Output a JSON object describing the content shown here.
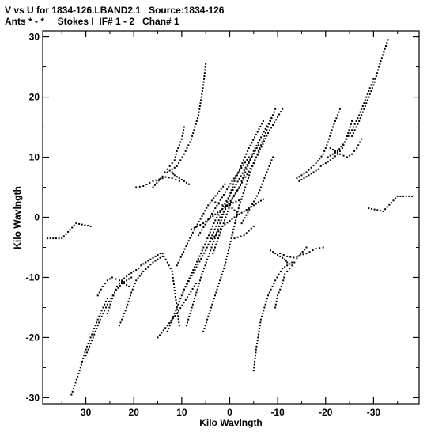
{
  "title": "V vs U for 1834-126.LBAND2.1   Source:1834-126",
  "subtitle": "Ants * - *     Stokes I  IF# 1 - 2   Chan# 1",
  "chart_data": {
    "type": "scatter",
    "xlabel": "Kilo Wavlngth",
    "ylabel": "Kilo Wavlngth",
    "xlim": [
      39,
      -39.5
    ],
    "ylim": [
      -31,
      31
    ],
    "x_reversed": true,
    "xticks": [
      30,
      20,
      10,
      0,
      -10,
      -20,
      -30
    ],
    "xtick_labels": [
      "30",
      "20",
      "10",
      "0",
      "-10",
      "-20",
      "-30"
    ],
    "yticks": [
      30,
      20,
      10,
      0,
      -10,
      -20,
      -30
    ],
    "ytick_labels": [
      "30",
      "20",
      "10",
      "0",
      "-10",
      "-20",
      "-30"
    ],
    "grid": false,
    "marker_color": "#000000",
    "tracks": [
      {
        "u": [
          5.5,
          1.0,
          -2.0,
          -4.5,
          -7.0,
          -9.5
        ],
        "v": [
          -19.0,
          -8.0,
          2.0,
          8.0,
          13.0,
          18.0
        ]
      },
      {
        "u": [
          9.0,
          6.0,
          2.0,
          -1.0,
          -4.0,
          -7.0
        ],
        "v": [
          -18.0,
          -10.0,
          -1.0,
          6.0,
          11.5,
          16.0
        ]
      },
      {
        "u": [
          9.5,
          5.0,
          2.0,
          -2.0,
          -5.0,
          -9.0
        ],
        "v": [
          -12.0,
          -5.5,
          0.0,
          5.0,
          11.0,
          17.0
        ]
      },
      {
        "u": [
          13.0,
          9.5,
          6.0,
          3.0,
          -1.0,
          -6.0
        ],
        "v": [
          -19.0,
          -12.0,
          -6.0,
          -0.5,
          5.0,
          12.0
        ]
      },
      {
        "u": [
          15.0,
          11.0,
          7.0
        ],
        "v": [
          -20.0,
          -16.0,
          -11.0
        ]
      },
      {
        "u": [
          3.5,
          -0.5,
          -5.0,
          -8.0,
          -11.0
        ],
        "v": [
          -6.0,
          3.0,
          9.0,
          14.0,
          18.0
        ]
      },
      {
        "u": [
          6.5,
          3.0,
          -0.5,
          -4.0
        ],
        "v": [
          -3.0,
          1.5,
          6.0,
          10.0
        ]
      },
      {
        "u": [
          11.0,
          8.0,
          4.5,
          1.0
        ],
        "v": [
          -8.0,
          -3.0,
          2.0,
          5.5
        ]
      },
      {
        "u": [
          -2.5,
          -6.0,
          -9.0
        ],
        "v": [
          -1.0,
          4.0,
          10.0
        ]
      },
      {
        "u": [
          10.5,
          12.0,
          14.0
        ],
        "v": [
          -18.0,
          -9.0,
          -6.0
        ]
      },
      {
        "u": [
          4.0,
          1.5,
          -1.0,
          -3.0,
          -5.0,
          -7.0
        ],
        "v": [
          -4.0,
          -1.5,
          0.0,
          1.0,
          2.0,
          3.0
        ]
      },
      {
        "u": [
          8.0,
          5.5,
          3.0,
          0.5,
          -2.5
        ],
        "v": [
          -2.0,
          -1.0,
          0.5,
          2.0,
          3.0
        ]
      },
      {
        "u": [
          3.0,
          1.5,
          -0.5,
          -2.0
        ],
        "v": [
          2.5,
          2.0,
          1.5,
          0.5
        ]
      },
      {
        "u": [
          -1.0,
          -3.0,
          -5.0
        ],
        "v": [
          -3.5,
          -3.0,
          -1.5
        ]
      },
      {
        "u": [
          23.0,
          21.5,
          20.5,
          19.5,
          18.0,
          16.0,
          14.0
        ],
        "v": [
          -18.0,
          -15.0,
          -12.5,
          -10.5,
          -9.0,
          -7.5,
          -6.5
        ]
      },
      {
        "u": [
          25.5,
          24.5,
          23.5,
          22.5,
          21.0,
          19.0
        ],
        "v": [
          -16.0,
          -13.5,
          -11.5,
          -10.5,
          -9.5,
          -8.5
        ]
      },
      {
        "u": [
          27.5,
          26.5,
          25.5,
          24.5,
          23.0,
          21.0
        ],
        "v": [
          -13.0,
          -11.5,
          -10.5,
          -10.0,
          -10.5,
          -11.5
        ]
      },
      {
        "u": [
          30.0,
          28.5,
          27.0,
          25.5,
          24.0,
          22.5,
          20.5
        ],
        "v": [
          -23.0,
          -20.0,
          -17.0,
          -14.5,
          -12.5,
          -11.0,
          -10.0
        ]
      },
      {
        "u": [
          33.0,
          31.5,
          30.0,
          28.5,
          27.0,
          25.5
        ],
        "v": [
          -29.5,
          -26.0,
          -22.0,
          -19.0,
          -16.0,
          -13.5
        ]
      },
      {
        "u": [
          -23.0,
          -21.5,
          -20.5,
          -19.5,
          -18.0,
          -16.0,
          -14.0
        ],
        "v": [
          18.0,
          15.0,
          12.5,
          10.5,
          9.0,
          7.5,
          6.5
        ]
      },
      {
        "u": [
          -25.5,
          -24.5,
          -23.5,
          -22.5,
          -21.0,
          -19.0
        ],
        "v": [
          16.0,
          13.5,
          11.5,
          10.5,
          9.5,
          8.5
        ]
      },
      {
        "u": [
          -27.5,
          -26.5,
          -25.5,
          -24.5,
          -23.0,
          -21.0
        ],
        "v": [
          13.0,
          11.5,
          10.5,
          10.0,
          10.5,
          11.5
        ]
      },
      {
        "u": [
          -30.0,
          -28.5,
          -27.0,
          -25.5,
          -24.0,
          -22.5,
          -20.5
        ],
        "v": [
          23.0,
          20.0,
          17.0,
          14.5,
          12.5,
          11.0,
          10.0
        ]
      },
      {
        "u": [
          -33.0,
          -31.5,
          -30.0,
          -28.5,
          -27.0,
          -25.5
        ],
        "v": [
          29.5,
          26.0,
          22.0,
          19.0,
          16.0,
          13.5
        ]
      },
      {
        "u": [
          5.0,
          5.5,
          6.5,
          8.0,
          9.5,
          11.0,
          13.0
        ],
        "v": [
          25.5,
          22.0,
          17.0,
          13.0,
          10.5,
          8.5,
          7.5
        ]
      },
      {
        "u": [
          9.5,
          10.0,
          11.0,
          11.5,
          12.5,
          13.5
        ],
        "v": [
          15.0,
          13.0,
          11.0,
          9.5,
          8.5,
          7.5
        ]
      },
      {
        "u": [
          8.5,
          9.5,
          10.5,
          11.5,
          12.0
        ],
        "v": [
          5.5,
          6.0,
          6.5,
          7.0,
          7.5
        ]
      },
      {
        "u": [
          -5.0,
          -5.5,
          -6.5,
          -8.0,
          -9.5,
          -11.0,
          -13.0
        ],
        "v": [
          -25.5,
          -22.0,
          -17.0,
          -13.0,
          -10.5,
          -8.5,
          -7.5
        ]
      },
      {
        "u": [
          -9.5,
          -10.0,
          -11.0,
          -11.5,
          -12.5,
          -13.5
        ],
        "v": [
          -15.0,
          -13.0,
          -11.0,
          -9.5,
          -8.5,
          -7.5
        ]
      },
      {
        "u": [
          -8.5,
          -9.5,
          -10.5,
          -11.5,
          -12.0
        ],
        "v": [
          -5.5,
          -6.0,
          -6.5,
          -7.0,
          -7.5
        ]
      },
      {
        "u": [
          -10.5,
          -12.0,
          -14.0,
          -16.0
        ],
        "v": [
          -6.0,
          -6.5,
          -6.8,
          -5.0
        ]
      },
      {
        "u": [
          10.5,
          12.0,
          14.0,
          16.0
        ],
        "v": [
          6.0,
          6.5,
          6.8,
          5.0
        ]
      },
      {
        "u": [
          -14.0,
          -16.0,
          -18.0,
          -19.5
        ],
        "v": [
          -6.5,
          -6.0,
          -5.2,
          -5.0
        ]
      },
      {
        "u": [
          14.0,
          16.0,
          18.0,
          19.5
        ],
        "v": [
          6.5,
          6.0,
          5.2,
          5.0
        ]
      },
      {
        "u": [
          -14.5,
          -16.5,
          -18.5
        ],
        "v": [
          6.0,
          7.0,
          8.0
        ]
      },
      {
        "u": [
          14.5,
          16.5,
          18.5
        ],
        "v": [
          -6.0,
          -7.0,
          -8.0
        ]
      },
      {
        "u": [
          -29.0,
          -32.0,
          -35.0,
          -38.0
        ],
        "v": [
          1.5,
          1.0,
          3.5,
          3.5
        ]
      },
      {
        "u": [
          38.0,
          35.0,
          32.0,
          29.0
        ],
        "v": [
          -3.5,
          -3.5,
          -1.0,
          -1.5
        ]
      }
    ]
  }
}
